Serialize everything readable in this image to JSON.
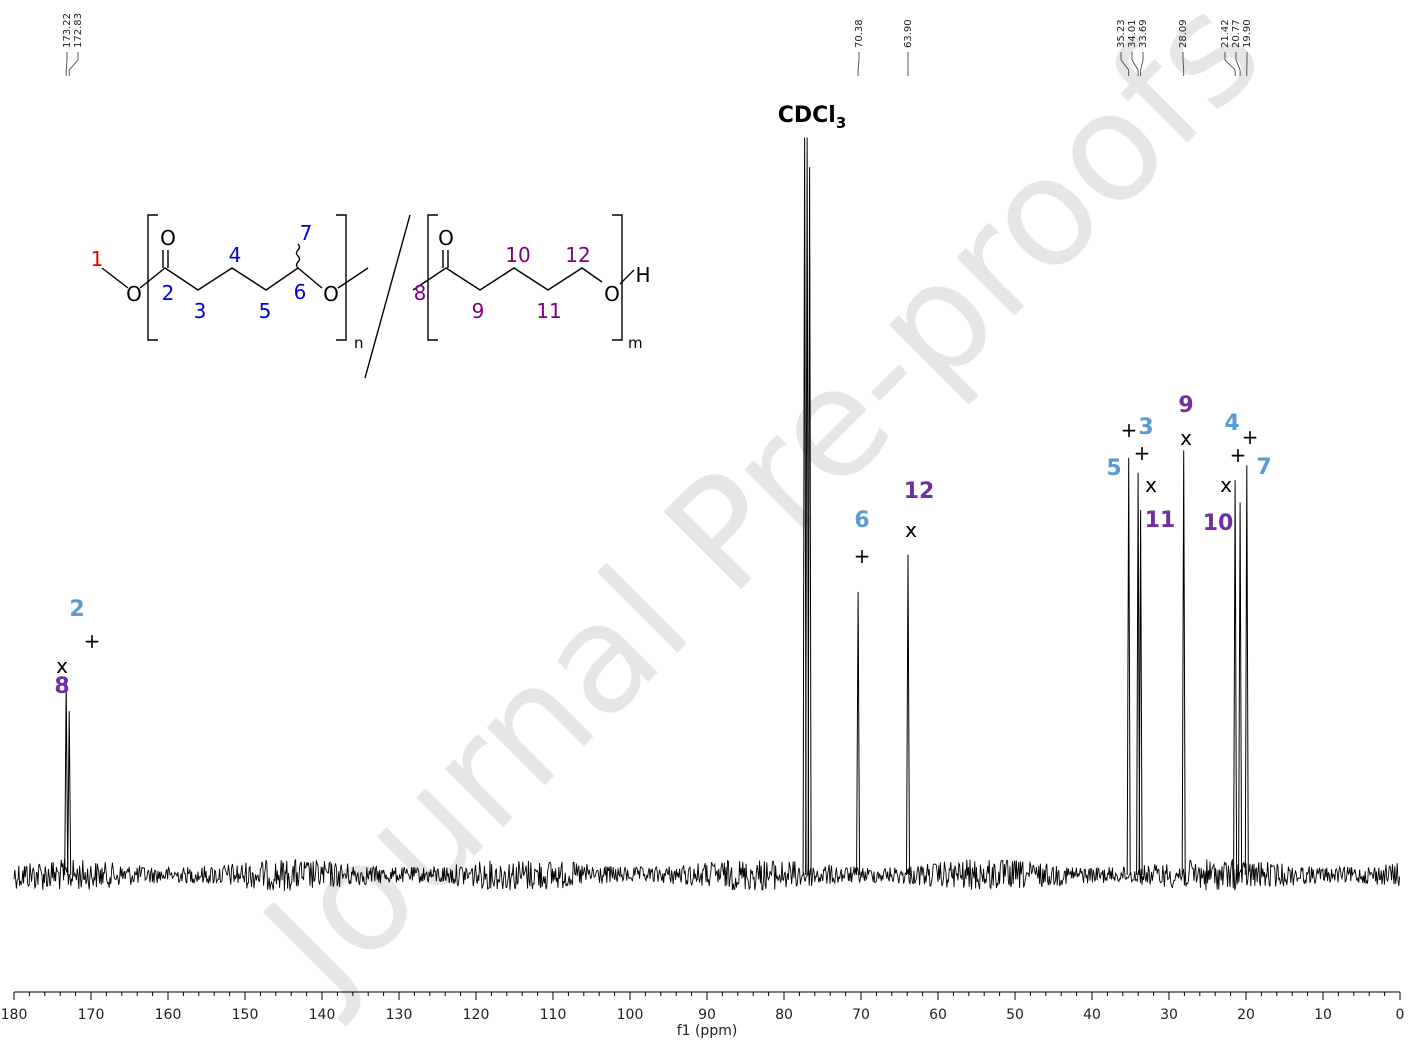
{
  "chart_data": {
    "type": "line",
    "title": "",
    "xlabel": "f1 (ppm)",
    "ylabel": "",
    "xlim": [
      180,
      0
    ],
    "x_reversed": true,
    "grid": false,
    "x_ticks": [
      180,
      170,
      160,
      150,
      140,
      130,
      120,
      110,
      100,
      90,
      80,
      70,
      60,
      50,
      40,
      30,
      20,
      10,
      0
    ],
    "peak_list": [
      "173.22",
      "172.83",
      "70.38",
      "63.90",
      "35.23",
      "34.01",
      "33.69",
      "28.09",
      "21.42",
      "20.77",
      "19.90"
    ],
    "peaks": [
      {
        "ppm": 173.22,
        "rel_height": 0.26
      },
      {
        "ppm": 172.83,
        "rel_height": 0.22
      },
      {
        "ppm": 77.32,
        "rel_height": 0.99
      },
      {
        "ppm": 77.0,
        "rel_height": 0.99
      },
      {
        "ppm": 76.68,
        "rel_height": 0.95
      },
      {
        "ppm": 70.38,
        "rel_height": 0.38
      },
      {
        "ppm": 63.9,
        "rel_height": 0.43
      },
      {
        "ppm": 35.23,
        "rel_height": 0.56
      },
      {
        "ppm": 34.01,
        "rel_height": 0.54
      },
      {
        "ppm": 33.69,
        "rel_height": 0.49
      },
      {
        "ppm": 28.09,
        "rel_height": 0.57
      },
      {
        "ppm": 21.42,
        "rel_height": 0.53
      },
      {
        "ppm": 20.77,
        "rel_height": 0.5
      },
      {
        "ppm": 19.9,
        "rel_height": 0.55
      }
    ],
    "solvent_label": "CDCl3",
    "assignments": [
      {
        "label": "2",
        "marker": "+",
        "color": "#5b9bd5"
      },
      {
        "label": "8",
        "marker": "x",
        "color": "#7030a0"
      },
      {
        "label": "6",
        "marker": "+",
        "color": "#5b9bd5"
      },
      {
        "label": "12",
        "marker": "x",
        "color": "#7030a0"
      },
      {
        "label": "5",
        "marker": "+",
        "color": "#5b9bd5"
      },
      {
        "label": "3",
        "marker": "+",
        "color": "#5b9bd5"
      },
      {
        "label": "11",
        "marker": "x",
        "color": "#7030a0"
      },
      {
        "label": "9",
        "marker": "x",
        "color": "#7030a0"
      },
      {
        "label": "10",
        "marker": "x",
        "color": "#7030a0"
      },
      {
        "label": "4",
        "marker": "+",
        "color": "#5b9bd5"
      },
      {
        "label": "7",
        "marker": "+",
        "color": "#5b9bd5"
      }
    ]
  },
  "structure": {
    "left_unit": {
      "numbers": [
        "1",
        "2",
        "3",
        "4",
        "5",
        "6",
        "7"
      ],
      "atoms": [
        "O",
        "O",
        "O"
      ],
      "subscript": "n"
    },
    "right_unit": {
      "numbers": [
        "8",
        "9",
        "10",
        "11",
        "12"
      ],
      "atoms": [
        "O",
        "O",
        "H"
      ],
      "subscript": "m"
    }
  },
  "watermark": "Journal Pre-proofs",
  "colors": {
    "poly1_labels": "#5b9bd5",
    "poly2_labels": "#7030a0",
    "struct_blue": "#0000dd",
    "struct_purple": "#800080",
    "struct_red": "#ee0000",
    "spectrum": "#000000",
    "watermark": "#e6e6e6"
  }
}
